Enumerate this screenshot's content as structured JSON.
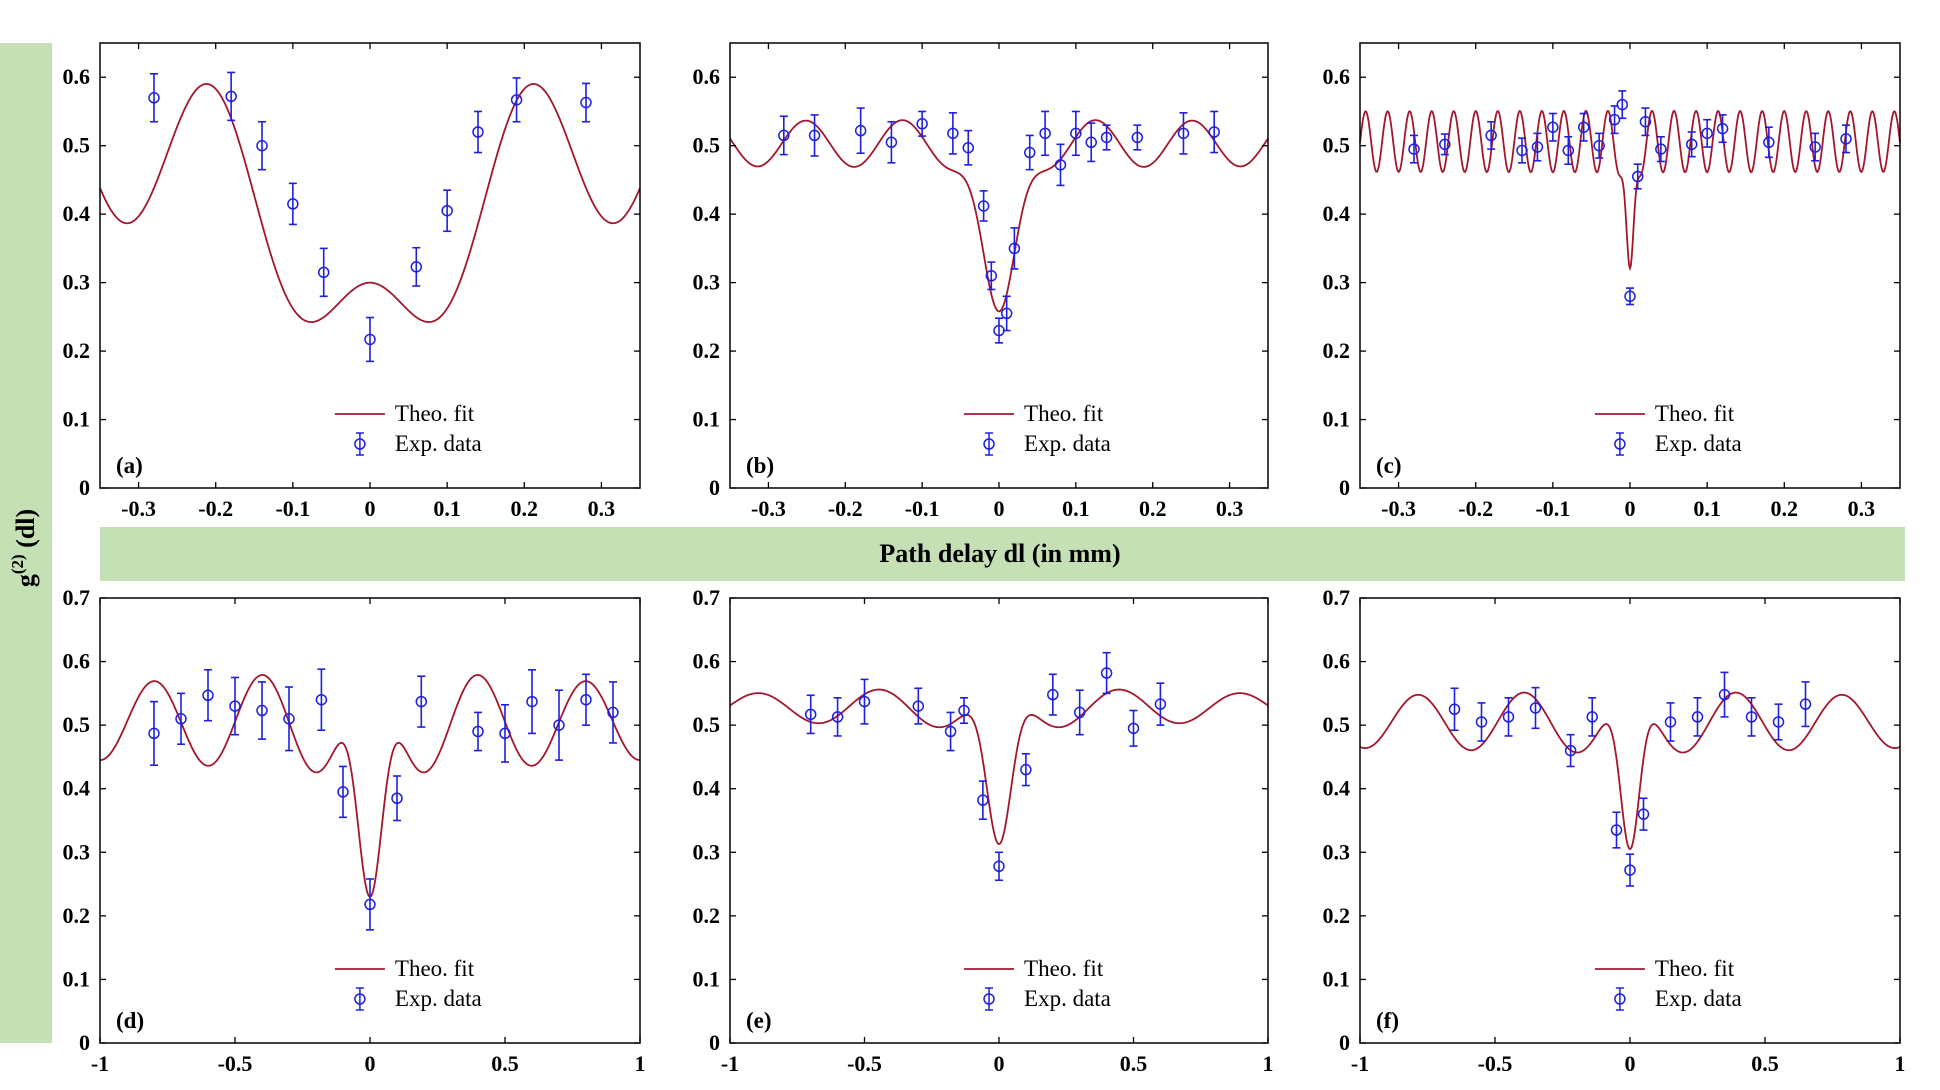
{
  "figure": {
    "ylabel_base": "g",
    "ylabel_sup": "(2)",
    "ylabel_arg": " (dl)",
    "xlabel": "Path delay dl (in mm)",
    "band_color": "#c5e0b4",
    "fit_color": "#a3172d",
    "data_color": "#1f1fe0"
  },
  "chart_data": [
    {
      "type": "line",
      "panel": "(a)",
      "xlim": [
        -0.35,
        0.35
      ],
      "ylim": [
        0,
        0.65
      ],
      "xticks": [
        -0.3,
        -0.2,
        -0.1,
        0,
        0.1,
        0.2,
        0.3
      ],
      "xtick_labels": [
        "-0.3",
        "-0.2",
        "-0.1",
        "0",
        "0.1",
        "0.2",
        "0.3"
      ],
      "yticks": [
        0,
        0.1,
        0.2,
        0.3,
        0.4,
        0.5,
        0.6
      ],
      "ytick_labels": [
        "0",
        "0.1",
        "0.2",
        "0.3",
        "0.4",
        "0.5",
        "0.6"
      ],
      "legend": {
        "fit": "Theo. fit",
        "data": "Exp. data"
      },
      "fit": {
        "base": 0.49,
        "A": 0.3,
        "w": 0.105,
        "B": 0.11,
        "k": 29.9,
        "c": 0.2
      },
      "exp_data": {
        "x": [
          -0.28,
          -0.18,
          -0.14,
          -0.1,
          -0.06,
          0.0,
          0.06,
          0.1,
          0.14,
          0.19,
          0.28
        ],
        "y": [
          0.57,
          0.572,
          0.5,
          0.415,
          0.315,
          0.217,
          0.323,
          0.405,
          0.52,
          0.567,
          0.563
        ],
        "err": [
          0.035,
          0.035,
          0.035,
          0.03,
          0.035,
          0.032,
          0.028,
          0.03,
          0.03,
          0.032,
          0.028
        ]
      }
    },
    {
      "type": "line",
      "panel": "(b)",
      "xlim": [
        -0.35,
        0.35
      ],
      "ylim": [
        0,
        0.65
      ],
      "xticks": [
        -0.3,
        -0.2,
        -0.1,
        0,
        0.1,
        0.2,
        0.3
      ],
      "xtick_labels": [
        "-0.3",
        "-0.2",
        "-0.1",
        "0",
        "0.1",
        "0.2",
        "0.3"
      ],
      "yticks": [
        0,
        0.1,
        0.2,
        0.3,
        0.4,
        0.5,
        0.6
      ],
      "ytick_labels": [
        "0",
        "0.1",
        "0.2",
        "0.3",
        "0.4",
        "0.5",
        "0.6"
      ],
      "legend": {
        "fit": "Theo. fit",
        "data": "Exp. data"
      },
      "fit": {
        "base": 0.503,
        "A": 0.28,
        "w": 0.03,
        "B": 0.035,
        "k": 50,
        "c": 0.16
      },
      "exp_data": {
        "x": [
          -0.28,
          -0.24,
          -0.18,
          -0.14,
          -0.1,
          -0.06,
          -0.04,
          -0.02,
          -0.01,
          0.0,
          0.01,
          0.02,
          0.04,
          0.06,
          0.08,
          0.1,
          0.12,
          0.14,
          0.18,
          0.24,
          0.28
        ],
        "y": [
          0.515,
          0.515,
          0.522,
          0.505,
          0.532,
          0.518,
          0.497,
          0.412,
          0.31,
          0.23,
          0.255,
          0.35,
          0.49,
          0.518,
          0.472,
          0.518,
          0.505,
          0.512,
          0.512,
          0.518,
          0.52
        ],
        "err": [
          0.028,
          0.03,
          0.033,
          0.03,
          0.018,
          0.03,
          0.025,
          0.022,
          0.02,
          0.018,
          0.025,
          0.03,
          0.025,
          0.032,
          0.03,
          0.032,
          0.028,
          0.018,
          0.018,
          0.03,
          0.03
        ]
      }
    },
    {
      "type": "line",
      "panel": "(c)",
      "xlim": [
        -0.35,
        0.35
      ],
      "ylim": [
        0,
        0.65
      ],
      "xticks": [
        -0.3,
        -0.2,
        -0.1,
        0,
        0.1,
        0.2,
        0.3
      ],
      "xtick_labels": [
        "-0.3",
        "-0.2",
        "-0.1",
        "0",
        "0.1",
        "0.2",
        "0.3"
      ],
      "yticks": [
        0,
        0.1,
        0.2,
        0.3,
        0.4,
        0.5,
        0.6
      ],
      "ytick_labels": [
        "0",
        "0.1",
        "0.2",
        "0.3",
        "0.4",
        "0.5",
        "0.6"
      ],
      "legend": {
        "fit": "Theo. fit",
        "data": "Exp. data"
      },
      "fit": {
        "base": 0.506,
        "A": 0.23,
        "w": 0.007,
        "B": 0.045,
        "k": 220,
        "c": 0.05
      },
      "exp_data": {
        "x": [
          -0.28,
          -0.24,
          -0.18,
          -0.14,
          -0.12,
          -0.1,
          -0.08,
          -0.06,
          -0.04,
          -0.02,
          -0.01,
          0.0,
          0.01,
          0.02,
          0.04,
          0.08,
          0.1,
          0.12,
          0.18,
          0.24,
          0.28
        ],
        "y": [
          0.495,
          0.502,
          0.515,
          0.493,
          0.498,
          0.527,
          0.493,
          0.527,
          0.5,
          0.538,
          0.56,
          0.28,
          0.455,
          0.535,
          0.495,
          0.502,
          0.518,
          0.525,
          0.505,
          0.498,
          0.51
        ],
        "err": [
          0.02,
          0.015,
          0.02,
          0.018,
          0.02,
          0.02,
          0.02,
          0.02,
          0.018,
          0.02,
          0.02,
          0.012,
          0.018,
          0.02,
          0.018,
          0.018,
          0.02,
          0.02,
          0.022,
          0.02,
          0.02
        ]
      }
    },
    {
      "type": "line",
      "panel": "(d)",
      "xlim": [
        -1,
        1
      ],
      "ylim": [
        0,
        0.7
      ],
      "xticks": [
        -1,
        -0.5,
        0,
        0.5,
        1
      ],
      "xtick_labels": [
        "-1",
        "-0.5",
        "0",
        "0.5",
        "1"
      ],
      "yticks": [
        0,
        0.1,
        0.2,
        0.3,
        0.4,
        0.5,
        0.6,
        0.7
      ],
      "ytick_labels": [
        "0",
        "0.1",
        "0.2",
        "0.3",
        "0.4",
        "0.5",
        "0.6",
        "0.7"
      ],
      "legend": {
        "fit": "Theo. fit",
        "data": "Exp. data"
      },
      "fit": {
        "base": 0.505,
        "A": 0.36,
        "w": 0.065,
        "B": 0.085,
        "k": 15.7,
        "c": 0.35
      },
      "exp_data": {
        "x": [
          -0.8,
          -0.7,
          -0.6,
          -0.5,
          -0.4,
          -0.3,
          -0.18,
          -0.1,
          0.0,
          0.1,
          0.19,
          0.4,
          0.5,
          0.6,
          0.7,
          0.8,
          0.9
        ],
        "y": [
          0.487,
          0.51,
          0.547,
          0.53,
          0.523,
          0.51,
          0.54,
          0.395,
          0.218,
          0.385,
          0.537,
          0.49,
          0.487,
          0.537,
          0.5,
          0.54,
          0.52
        ],
        "err": [
          0.05,
          0.04,
          0.04,
          0.045,
          0.045,
          0.05,
          0.048,
          0.04,
          0.04,
          0.035,
          0.04,
          0.03,
          0.045,
          0.05,
          0.055,
          0.04,
          0.048
        ]
      }
    },
    {
      "type": "line",
      "panel": "(e)",
      "xlim": [
        -1,
        1
      ],
      "ylim": [
        0,
        0.7
      ],
      "xticks": [
        -1,
        -0.5,
        0,
        0.5,
        1
      ],
      "xtick_labels": [
        "-1",
        "-0.5",
        "0",
        "0.5",
        "1"
      ],
      "yticks": [
        0,
        0.1,
        0.2,
        0.3,
        0.4,
        0.5,
        0.6,
        0.7
      ],
      "ytick_labels": [
        "0",
        "0.1",
        "0.2",
        "0.3",
        "0.4",
        "0.5",
        "0.6",
        "0.7"
      ],
      "legend": {
        "fit": "Theo. fit",
        "data": "Exp. data"
      },
      "fit": {
        "base": 0.528,
        "A": 0.25,
        "w": 0.065,
        "B": 0.035,
        "k": 14,
        "c": 0.5
      },
      "exp_data": {
        "x": [
          -0.7,
          -0.6,
          -0.5,
          -0.3,
          -0.18,
          -0.13,
          -0.06,
          0.0,
          0.1,
          0.2,
          0.3,
          0.4,
          0.5,
          0.6
        ],
        "y": [
          0.517,
          0.513,
          0.537,
          0.53,
          0.49,
          0.523,
          0.382,
          0.278,
          0.43,
          0.548,
          0.52,
          0.582,
          0.495,
          0.533
        ],
        "err": [
          0.03,
          0.03,
          0.035,
          0.028,
          0.03,
          0.02,
          0.03,
          0.022,
          0.025,
          0.032,
          0.035,
          0.032,
          0.028,
          0.033
        ]
      }
    },
    {
      "type": "line",
      "panel": "(f)",
      "xlim": [
        -1,
        1
      ],
      "ylim": [
        0,
        0.7
      ],
      "xticks": [
        -1,
        -0.5,
        0,
        0.5,
        1
      ],
      "xtick_labels": [
        "-1",
        "-0.5",
        "0",
        "0.5",
        "1"
      ],
      "yticks": [
        0,
        0.1,
        0.2,
        0.3,
        0.4,
        0.5,
        0.6,
        0.7
      ],
      "ytick_labels": [
        "0",
        "0.1",
        "0.2",
        "0.3",
        "0.4",
        "0.5",
        "0.6",
        "0.7"
      ],
      "legend": {
        "fit": "Theo. fit",
        "data": "Exp. data"
      },
      "fit": {
        "base": 0.505,
        "A": 0.25,
        "w": 0.05,
        "B": 0.05,
        "k": 16,
        "c": 0.2
      },
      "exp_data": {
        "x": [
          -0.65,
          -0.55,
          -0.45,
          -0.35,
          -0.22,
          -0.14,
          -0.05,
          0.0,
          0.05,
          0.15,
          0.25,
          0.35,
          0.45,
          0.55,
          0.65
        ],
        "y": [
          0.525,
          0.505,
          0.513,
          0.527,
          0.46,
          0.513,
          0.335,
          0.272,
          0.36,
          0.505,
          0.513,
          0.548,
          0.513,
          0.505,
          0.533
        ],
        "err": [
          0.033,
          0.03,
          0.03,
          0.032,
          0.025,
          0.03,
          0.028,
          0.025,
          0.025,
          0.03,
          0.03,
          0.035,
          0.03,
          0.028,
          0.035
        ]
      }
    }
  ]
}
